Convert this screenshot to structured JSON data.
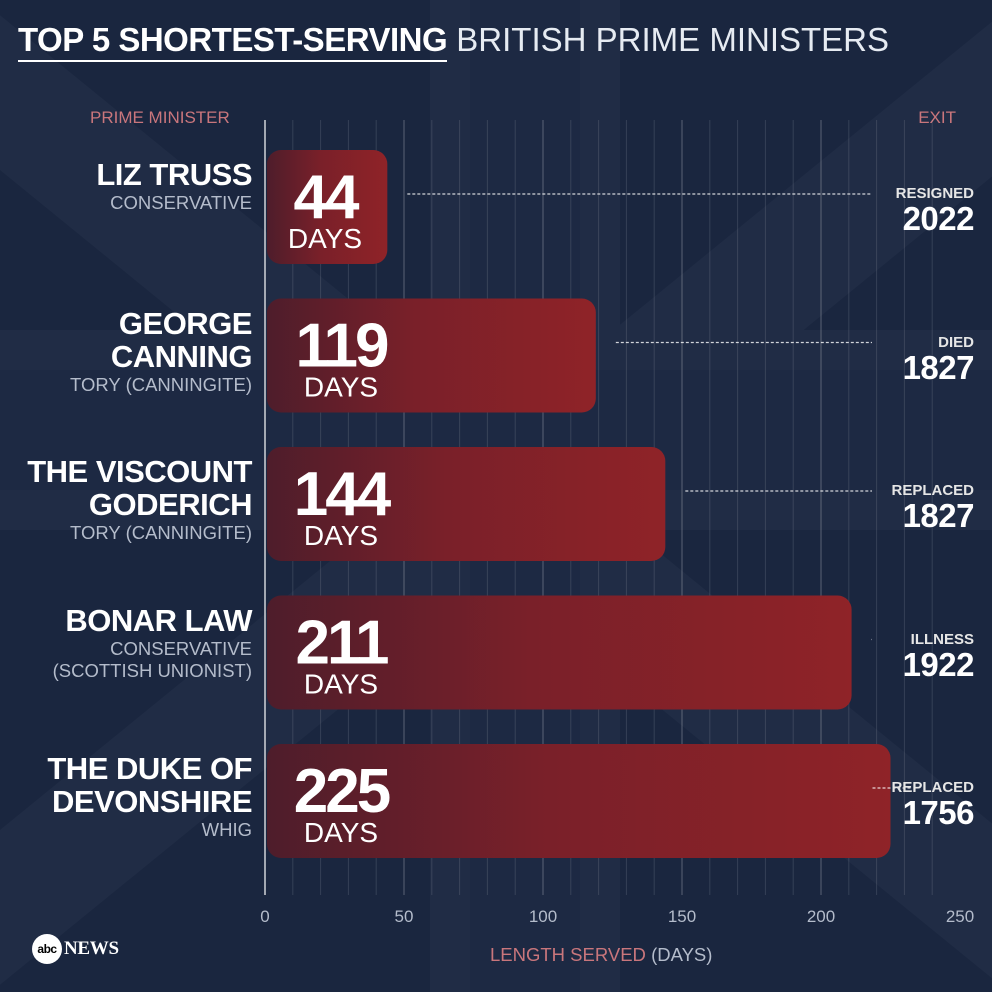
{
  "title": {
    "bold": "TOP 5 SHORTEST-SERVING",
    "rest": "BRITISH PRIME MINISTERS"
  },
  "headers": {
    "prime_minister": "PRIME MINISTER",
    "exit": "EXIT"
  },
  "xaxis": {
    "label": "LENGTH SERVED",
    "unit": "(DAYS)"
  },
  "logo": {
    "mark": "abc",
    "text": "NEWS"
  },
  "colors": {
    "bar": "#8f2328",
    "bar_dark": "#4e1d2b",
    "background": "#1d2a44",
    "header": "#c9767c"
  },
  "chart_data": {
    "type": "bar",
    "orientation": "horizontal",
    "title": "TOP 5 SHORTEST-SERVING BRITISH PRIME MINISTERS",
    "xlabel": "LENGTH SERVED (DAYS)",
    "xlim": [
      0,
      250
    ],
    "xticks": [
      0,
      50,
      100,
      150,
      200,
      250
    ],
    "grid": true,
    "bars": [
      {
        "name": "LIZ TRUSS",
        "party": "CONSERVATIVE",
        "value": 44,
        "value_label": "44",
        "unit": "DAYS",
        "exit_reason": "RESIGNED",
        "exit_year": "2022"
      },
      {
        "name": "GEORGE CANNING",
        "party": "TORY (CANNINGITE)",
        "value": 119,
        "value_label": "119",
        "unit": "DAYS",
        "exit_reason": "DIED",
        "exit_year": "1827"
      },
      {
        "name": "THE VISCOUNT GODERICH",
        "party": "TORY (CANNINGITE)",
        "value": 144,
        "value_label": "144",
        "unit": "DAYS",
        "exit_reason": "REPLACED",
        "exit_year": "1827"
      },
      {
        "name": "BONAR LAW",
        "party": "CONSERVATIVE (SCOTTISH UNIONIST)",
        "value": 211,
        "value_label": "211",
        "unit": "DAYS",
        "exit_reason": "ILLNESS",
        "exit_year": "1922"
      },
      {
        "name": "THE DUKE OF DEVONSHIRE",
        "party": "WHIG",
        "value": 225,
        "value_label": "225",
        "unit": "DAYS",
        "exit_reason": "REPLACED",
        "exit_year": "1756"
      }
    ]
  }
}
